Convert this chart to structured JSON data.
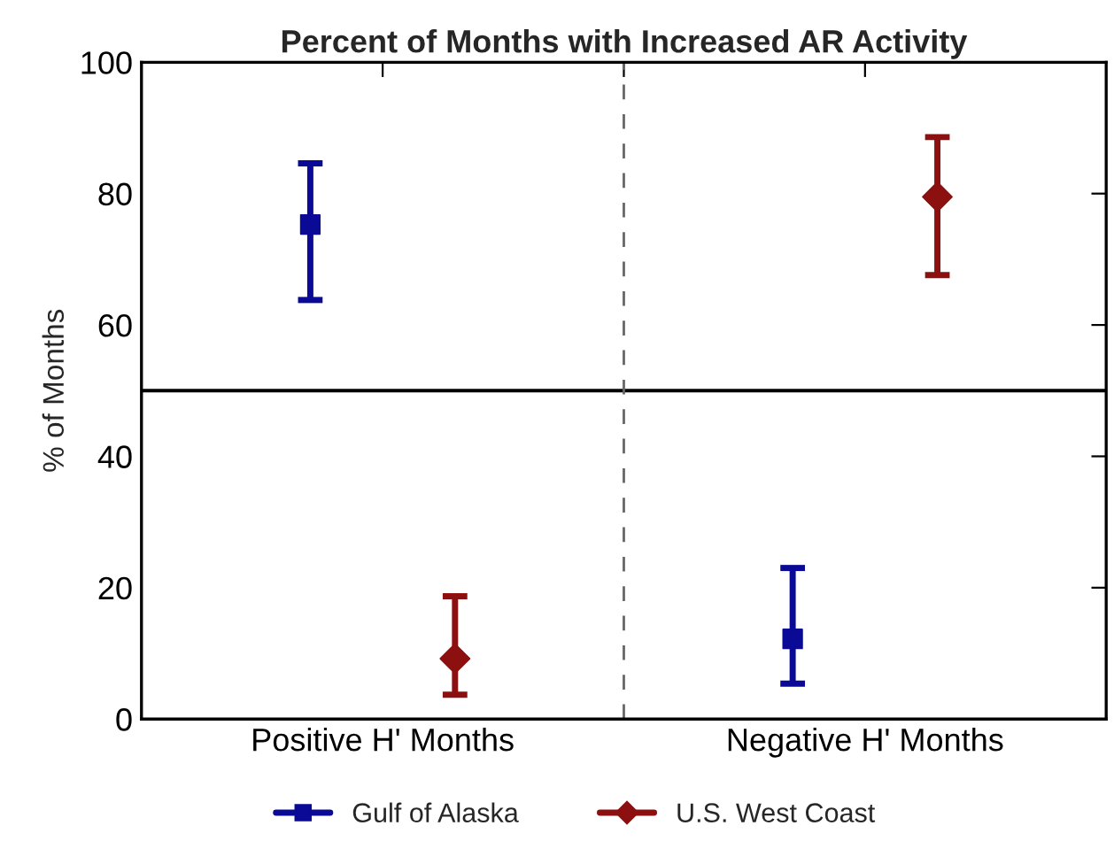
{
  "chart_data": {
    "type": "scatter",
    "title": "Percent of Months with Increased AR Activity",
    "ylabel": "% of Months",
    "series": [
      {
        "name": "Gulf of Alaska",
        "color": "#0a0a96",
        "marker": "square",
        "values": [
          75.3,
          12.2
        ],
        "errors": [
          [
            63.8,
            84.6
          ],
          [
            5.4,
            23.0
          ]
        ]
      },
      {
        "name": "U.S. West Coast",
        "color": "#8c1010",
        "marker": "diamond",
        "values": [
          9.2,
          79.5
        ],
        "errors": [
          [
            3.7,
            18.7
          ],
          [
            67.6,
            88.6
          ]
        ]
      }
    ],
    "categories": [
      "Positive H' Months",
      "Negative H' Months"
    ],
    "ylim": [
      0,
      100
    ],
    "yticks": [
      0,
      20,
      40,
      60,
      80,
      100
    ],
    "ref_lines": [
      {
        "axis": "y",
        "value": 50,
        "color": "#000000",
        "line_style": "solid"
      }
    ],
    "grid": false,
    "legend": "bottom"
  }
}
